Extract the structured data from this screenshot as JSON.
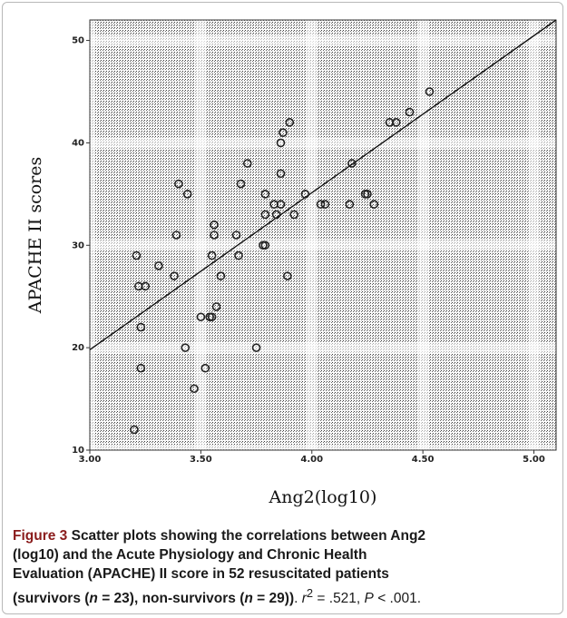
{
  "chart_data": {
    "type": "scatter",
    "xlabel": "Ang2(log10)",
    "ylabel": "APACHE II scores",
    "xlim": [
      3.0,
      5.1
    ],
    "ylim": [
      10,
      52
    ],
    "x_ticks": [
      "3.00",
      "3.50",
      "4.00",
      "4.50",
      "5.00"
    ],
    "x_tick_values": [
      3.0,
      3.5,
      4.0,
      4.5,
      5.0
    ],
    "y_ticks": [
      "10",
      "20",
      "30",
      "40",
      "50"
    ],
    "y_tick_values": [
      10,
      20,
      30,
      40,
      50
    ],
    "grid": true,
    "fit_line": {
      "x": [
        3.0,
        5.1
      ],
      "y": [
        19.8,
        52.0
      ]
    },
    "points": [
      {
        "x": 3.2,
        "y": 12
      },
      {
        "x": 3.21,
        "y": 29
      },
      {
        "x": 3.22,
        "y": 26
      },
      {
        "x": 3.23,
        "y": 22
      },
      {
        "x": 3.23,
        "y": 18
      },
      {
        "x": 3.25,
        "y": 26
      },
      {
        "x": 3.31,
        "y": 28
      },
      {
        "x": 3.38,
        "y": 27
      },
      {
        "x": 3.39,
        "y": 31
      },
      {
        "x": 3.4,
        "y": 36
      },
      {
        "x": 3.43,
        "y": 20
      },
      {
        "x": 3.44,
        "y": 35
      },
      {
        "x": 3.47,
        "y": 16
      },
      {
        "x": 3.5,
        "y": 23
      },
      {
        "x": 3.52,
        "y": 18
      },
      {
        "x": 3.54,
        "y": 23
      },
      {
        "x": 3.55,
        "y": 29
      },
      {
        "x": 3.55,
        "y": 23
      },
      {
        "x": 3.56,
        "y": 32
      },
      {
        "x": 3.56,
        "y": 31
      },
      {
        "x": 3.57,
        "y": 24
      },
      {
        "x": 3.59,
        "y": 27
      },
      {
        "x": 3.66,
        "y": 31
      },
      {
        "x": 3.67,
        "y": 29
      },
      {
        "x": 3.68,
        "y": 36
      },
      {
        "x": 3.71,
        "y": 38
      },
      {
        "x": 3.75,
        "y": 20
      },
      {
        "x": 3.78,
        "y": 30
      },
      {
        "x": 3.79,
        "y": 30
      },
      {
        "x": 3.79,
        "y": 35
      },
      {
        "x": 3.79,
        "y": 33
      },
      {
        "x": 3.83,
        "y": 34
      },
      {
        "x": 3.84,
        "y": 33
      },
      {
        "x": 3.86,
        "y": 34
      },
      {
        "x": 3.86,
        "y": 37
      },
      {
        "x": 3.86,
        "y": 40
      },
      {
        "x": 3.87,
        "y": 41
      },
      {
        "x": 3.89,
        "y": 27
      },
      {
        "x": 3.9,
        "y": 42
      },
      {
        "x": 3.92,
        "y": 33
      },
      {
        "x": 3.97,
        "y": 35
      },
      {
        "x": 4.04,
        "y": 34
      },
      {
        "x": 4.06,
        "y": 34
      },
      {
        "x": 4.17,
        "y": 34
      },
      {
        "x": 4.18,
        "y": 38
      },
      {
        "x": 4.24,
        "y": 35
      },
      {
        "x": 4.25,
        "y": 35
      },
      {
        "x": 4.28,
        "y": 34
      },
      {
        "x": 4.35,
        "y": 42
      },
      {
        "x": 4.38,
        "y": 42
      },
      {
        "x": 4.44,
        "y": 43
      },
      {
        "x": 4.53,
        "y": 45
      }
    ]
  },
  "caption": {
    "figure_label": "Figure 3",
    "line1_rest": " Scatter plots showing the correlations between Ang2",
    "line2": "(log10) and the Acute Physiology and Chronic Health",
    "line3": "Evaluation (APACHE) II score in 52 resuscitated patients",
    "line4_a": "(survivors (",
    "n1_var": "n",
    "n1_rest": " = 23), non-survivors (",
    "n2_var": "n",
    "n2_rest": " = 29))",
    "stats_a": ". ",
    "r_var": "r",
    "r_sup": "2",
    "stats_b": " = .521, ",
    "p_var": "P",
    "stats_c": " < .001."
  }
}
